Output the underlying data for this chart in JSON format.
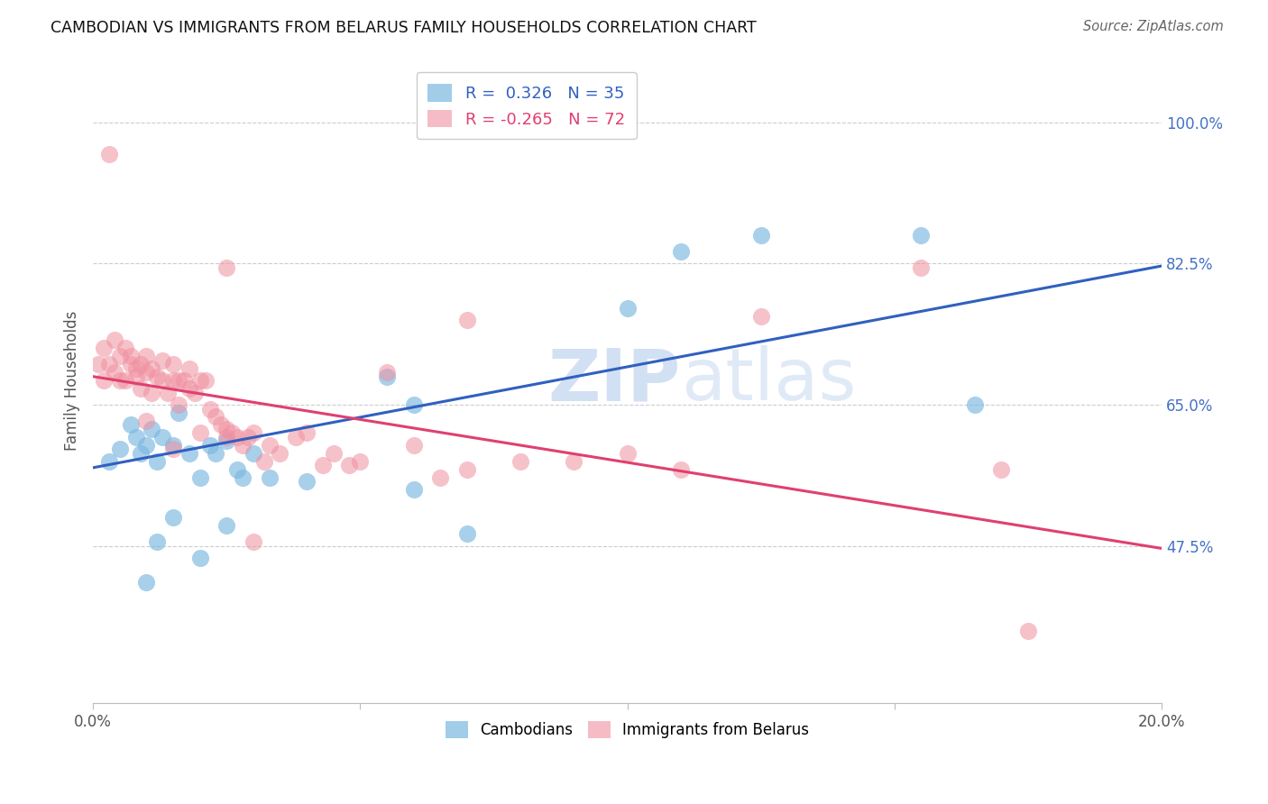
{
  "title": "CAMBODIAN VS IMMIGRANTS FROM BELARUS FAMILY HOUSEHOLDS CORRELATION CHART",
  "source": "Source: ZipAtlas.com",
  "ylabel": "Family Households",
  "x_min": 0.0,
  "x_max": 0.2,
  "y_min": 0.28,
  "y_max": 1.08,
  "y_ticks": [
    0.475,
    0.65,
    0.825,
    1.0
  ],
  "y_tick_labels": [
    "47.5%",
    "65.0%",
    "82.5%",
    "100.0%"
  ],
  "x_ticks": [
    0.0,
    0.05,
    0.1,
    0.15,
    0.2
  ],
  "x_tick_labels": [
    "0.0%",
    "",
    "",
    "",
    "20.0%"
  ],
  "legend_R_blue": "0.326",
  "legend_N_blue": "35",
  "legend_R_pink": "-0.265",
  "legend_N_pink": "72",
  "blue_color": "#7ab8e0",
  "pink_color": "#f090a0",
  "blue_line_color": "#3060c0",
  "pink_line_color": "#e04070",
  "background_color": "#ffffff",
  "grid_color": "#cccccc",
  "blue_line_y0": 0.572,
  "blue_line_y1": 0.822,
  "pink_line_y0": 0.685,
  "pink_line_y1": 0.472,
  "blue_x": [
    0.003,
    0.005,
    0.007,
    0.008,
    0.009,
    0.01,
    0.011,
    0.012,
    0.013,
    0.015,
    0.016,
    0.018,
    0.02,
    0.022,
    0.023,
    0.025,
    0.027,
    0.028,
    0.03,
    0.033,
    0.04,
    0.055,
    0.06,
    0.1,
    0.11,
    0.125,
    0.155,
    0.165,
    0.01,
    0.012,
    0.015,
    0.02,
    0.025,
    0.07,
    0.06
  ],
  "blue_y": [
    0.58,
    0.595,
    0.625,
    0.61,
    0.59,
    0.6,
    0.62,
    0.58,
    0.61,
    0.6,
    0.64,
    0.59,
    0.56,
    0.6,
    0.59,
    0.605,
    0.57,
    0.56,
    0.59,
    0.56,
    0.555,
    0.685,
    0.65,
    0.77,
    0.84,
    0.86,
    0.86,
    0.65,
    0.43,
    0.48,
    0.51,
    0.46,
    0.5,
    0.49,
    0.545
  ],
  "pink_x": [
    0.001,
    0.002,
    0.002,
    0.003,
    0.004,
    0.004,
    0.005,
    0.005,
    0.006,
    0.006,
    0.007,
    0.007,
    0.008,
    0.008,
    0.009,
    0.009,
    0.01,
    0.01,
    0.011,
    0.011,
    0.012,
    0.013,
    0.013,
    0.014,
    0.015,
    0.015,
    0.016,
    0.016,
    0.017,
    0.018,
    0.018,
    0.019,
    0.02,
    0.021,
    0.022,
    0.023,
    0.024,
    0.025,
    0.026,
    0.027,
    0.028,
    0.029,
    0.03,
    0.032,
    0.033,
    0.035,
    0.038,
    0.04,
    0.043,
    0.045,
    0.048,
    0.05,
    0.06,
    0.065,
    0.07,
    0.08,
    0.09,
    0.1,
    0.11,
    0.125,
    0.155,
    0.17,
    0.003,
    0.025,
    0.055,
    0.07,
    0.01,
    0.015,
    0.02,
    0.025,
    0.175,
    0.03
  ],
  "pink_y": [
    0.7,
    0.72,
    0.68,
    0.7,
    0.73,
    0.69,
    0.71,
    0.68,
    0.72,
    0.68,
    0.7,
    0.71,
    0.695,
    0.685,
    0.7,
    0.67,
    0.69,
    0.71,
    0.695,
    0.665,
    0.685,
    0.705,
    0.68,
    0.665,
    0.7,
    0.68,
    0.68,
    0.65,
    0.68,
    0.695,
    0.67,
    0.665,
    0.68,
    0.68,
    0.645,
    0.635,
    0.625,
    0.62,
    0.615,
    0.61,
    0.6,
    0.61,
    0.615,
    0.58,
    0.6,
    0.59,
    0.61,
    0.615,
    0.575,
    0.59,
    0.575,
    0.58,
    0.6,
    0.56,
    0.57,
    0.58,
    0.58,
    0.59,
    0.57,
    0.76,
    0.82,
    0.57,
    0.96,
    0.82,
    0.69,
    0.755,
    0.63,
    0.595,
    0.615,
    0.61,
    0.37,
    0.48
  ]
}
